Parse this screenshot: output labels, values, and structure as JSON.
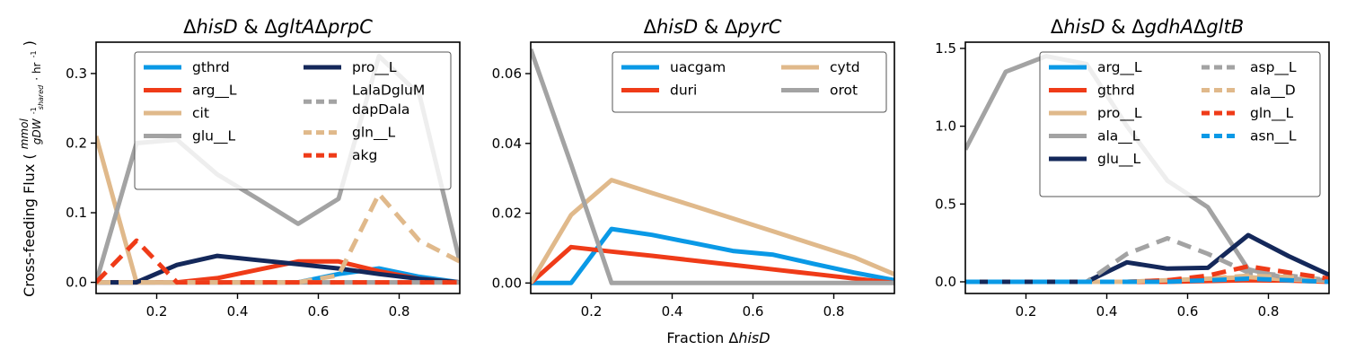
{
  "colors": {
    "blue": "#0a99e6",
    "red": "#ef3b18",
    "tan": "#e0b98b",
    "gray": "#a3a3a3",
    "navy": "#14285a"
  },
  "y_axis_label": {
    "prefix": "Cross-feeding Flux (",
    "numerator": "mmol",
    "denominator": "gDW",
    "denominator_sup": "-1",
    "denominator_sub": "shared",
    "denominator_suffix": "· hr",
    "denominator_suffix_sup": "-1",
    "suffix": ")"
  },
  "x_axis_label": {
    "prefix": "Fraction Δ",
    "italic": "hisD"
  },
  "chart_data": [
    {
      "type": "line",
      "title_parts": [
        {
          "text": "Δ",
          "italic": false
        },
        {
          "text": "hisD",
          "italic": true
        },
        {
          "text": " & Δ",
          "italic": false
        },
        {
          "text": "gltA",
          "italic": true
        },
        {
          "text": "Δ",
          "italic": false
        },
        {
          "text": "prpC",
          "italic": true
        }
      ],
      "xlim": [
        0.05,
        0.95
      ],
      "ylim": [
        -0.016,
        0.345
      ],
      "xticks": [
        0.2,
        0.4,
        0.6,
        0.8
      ],
      "xtick_labels": [
        "0.2",
        "0.4",
        "0.6",
        "0.8"
      ],
      "yticks": [
        0.0,
        0.1,
        0.2,
        0.3
      ],
      "ytick_labels": [
        "0.0",
        "0.1",
        "0.2",
        "0.3"
      ],
      "x": [
        0.05,
        0.15,
        0.25,
        0.35,
        0.45,
        0.55,
        0.65,
        0.75,
        0.85,
        0.95
      ],
      "legend": {
        "position": "upper-right",
        "columns": 2
      },
      "series": [
        {
          "name": "gthrd",
          "color": "blue",
          "dash": false,
          "values": [
            0,
            0,
            0,
            0,
            0,
            0,
            0.012,
            0.02,
            0.008,
            0
          ]
        },
        {
          "name": "arg__L",
          "color": "red",
          "dash": false,
          "values": [
            0,
            0,
            0,
            0.006,
            0.018,
            0.03,
            0.03,
            0.016,
            0.005,
            0
          ]
        },
        {
          "name": "cit",
          "color": "tan",
          "dash": false,
          "values": [
            0.21,
            0,
            0,
            0,
            0,
            0,
            0,
            0,
            0,
            0
          ]
        },
        {
          "name": "glu__L",
          "color": "gray",
          "dash": false,
          "values": [
            0,
            0.2,
            0.205,
            0.155,
            0.12,
            0.084,
            0.12,
            0.325,
            0.27,
            0.03
          ]
        },
        {
          "name": "pro__L",
          "color": "navy",
          "dash": false,
          "values": [
            0,
            0,
            0.025,
            0.038,
            0.032,
            0.026,
            0.02,
            0.012,
            0.005,
            0
          ]
        },
        {
          "name": "LalaDgluM\ndapDala",
          "color": "gray",
          "dash": true,
          "values": [
            0,
            0,
            0,
            0,
            0,
            0,
            0,
            0,
            0,
            0
          ]
        },
        {
          "name": "gln__L",
          "color": "tan",
          "dash": true,
          "values": [
            0,
            0,
            0,
            0,
            0,
            0,
            0.01,
            0.127,
            0.06,
            0.03
          ]
        },
        {
          "name": "akg",
          "color": "red",
          "dash": true,
          "values": [
            0,
            0.06,
            0,
            0,
            0,
            0,
            0,
            0,
            0,
            0
          ]
        }
      ]
    },
    {
      "type": "line",
      "title_parts": [
        {
          "text": "Δ",
          "italic": false
        },
        {
          "text": "hisD",
          "italic": true
        },
        {
          "text": " & Δ",
          "italic": false
        },
        {
          "text": "pyrC",
          "italic": true
        }
      ],
      "xlim": [
        0.05,
        0.95
      ],
      "ylim": [
        -0.003,
        0.069
      ],
      "xticks": [
        0.2,
        0.4,
        0.6,
        0.8
      ],
      "xtick_labels": [
        "0.2",
        "0.4",
        "0.6",
        "0.8"
      ],
      "yticks": [
        0.0,
        0.02,
        0.04,
        0.06
      ],
      "ytick_labels": [
        "0.00",
        "0.02",
        "0.04",
        "0.06"
      ],
      "x": [
        0.05,
        0.15,
        0.25,
        0.35,
        0.45,
        0.55,
        0.65,
        0.75,
        0.85,
        0.95
      ],
      "legend": {
        "position": "upper-right",
        "columns": 2
      },
      "series": [
        {
          "name": "uacgam",
          "color": "blue",
          "dash": false,
          "values": [
            0,
            0,
            0.0155,
            0.0138,
            0.0115,
            0.0092,
            0.0081,
            0.0055,
            0.003,
            0.0008
          ]
        },
        {
          "name": "duri",
          "color": "red",
          "dash": false,
          "values": [
            0,
            0.0103,
            0.009,
            0.0078,
            0.0065,
            0.0052,
            0.0039,
            0.0026,
            0.0013,
            0
          ]
        },
        {
          "name": "cytd",
          "color": "tan",
          "dash": false,
          "values": [
            0,
            0.0195,
            0.0295,
            0.0258,
            0.0222,
            0.0185,
            0.0148,
            0.0111,
            0.0074,
            0.0025
          ]
        },
        {
          "name": "orot",
          "color": "gray",
          "dash": false,
          "values": [
            0.067,
            0.034,
            0,
            0,
            0,
            0,
            0,
            0,
            0,
            0
          ]
        }
      ]
    },
    {
      "type": "line",
      "title_parts": [
        {
          "text": "Δ",
          "italic": false
        },
        {
          "text": "hisD",
          "italic": true
        },
        {
          "text": " & Δ",
          "italic": false
        },
        {
          "text": "gdhA",
          "italic": true
        },
        {
          "text": "Δ",
          "italic": false
        },
        {
          "text": "gltB",
          "italic": true
        }
      ],
      "xlim": [
        0.05,
        0.95
      ],
      "ylim": [
        -0.075,
        1.54
      ],
      "xticks": [
        0.2,
        0.4,
        0.6,
        0.8
      ],
      "xtick_labels": [
        "0.2",
        "0.4",
        "0.6",
        "0.8"
      ],
      "yticks": [
        0.0,
        0.5,
        1.0,
        1.5
      ],
      "ytick_labels": [
        "0.0",
        "0.5",
        "1.0",
        "1.5"
      ],
      "x": [
        0.05,
        0.15,
        0.25,
        0.35,
        0.45,
        0.55,
        0.65,
        0.75,
        0.85,
        0.95
      ],
      "legend": {
        "position": "upper-right",
        "columns": 2
      },
      "series": [
        {
          "name": "arg__L",
          "color": "blue",
          "dash": false,
          "values": [
            0,
            0,
            0,
            0,
            0,
            0.005,
            0.012,
            0.02,
            0.015,
            0.005
          ]
        },
        {
          "name": "gthrd",
          "color": "red",
          "dash": false,
          "values": [
            0,
            0,
            0,
            0,
            0,
            0,
            0.005,
            0.01,
            0.008,
            0
          ]
        },
        {
          "name": "pro__L",
          "color": "tan",
          "dash": false,
          "values": [
            0,
            0,
            0,
            0,
            0,
            0.01,
            0.02,
            0.03,
            0.015,
            0.005
          ]
        },
        {
          "name": "ala__L",
          "color": "gray",
          "dash": false,
          "values": [
            0.85,
            1.35,
            1.45,
            1.4,
            1.0,
            0.65,
            0.48,
            0.08,
            0.02,
            0.01
          ]
        },
        {
          "name": "glu__L",
          "color": "navy",
          "dash": false,
          "values": [
            0,
            0,
            0,
            0,
            0.125,
            0.085,
            0.09,
            0.3,
            0.165,
            0.045
          ]
        },
        {
          "name": "asp__L",
          "color": "gray",
          "dash": true,
          "values": [
            0,
            0,
            0,
            0,
            0.18,
            0.28,
            0.18,
            0.06,
            0.04,
            0.01
          ]
        },
        {
          "name": "ala__D",
          "color": "tan",
          "dash": true,
          "values": [
            0,
            0,
            0,
            0,
            0,
            0.01,
            0.02,
            0.04,
            0.03,
            0.01
          ]
        },
        {
          "name": "gln__L",
          "color": "red",
          "dash": true,
          "values": [
            0,
            0,
            0,
            0,
            0,
            0.01,
            0.04,
            0.1,
            0.06,
            0.02
          ]
        },
        {
          "name": "asn__L",
          "color": "blue",
          "dash": true,
          "values": [
            0,
            0,
            0,
            0,
            0,
            0,
            0.01,
            0.02,
            0.01,
            0
          ]
        }
      ]
    }
  ]
}
